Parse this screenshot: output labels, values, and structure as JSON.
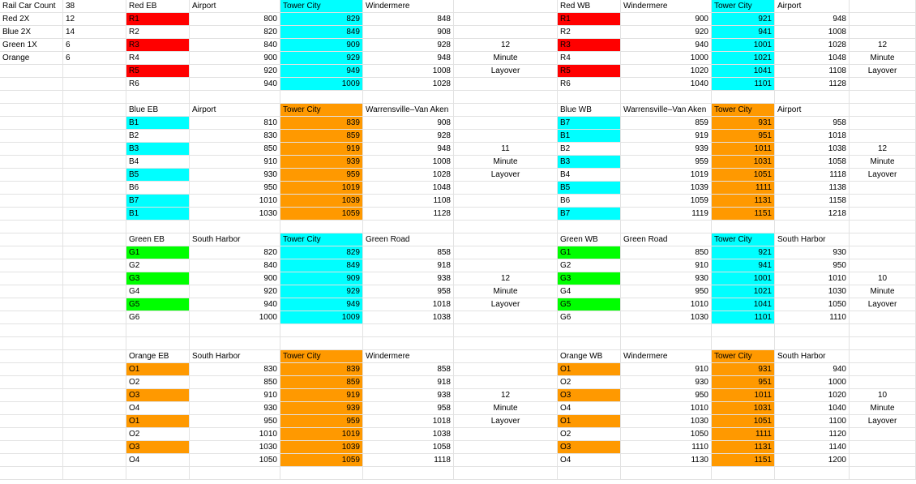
{
  "colors": {
    "red": "#ff0000",
    "cyan": "#00ffff",
    "orange": "#ff9900",
    "green": "#00ff00",
    "gridline": "#e2e2e2"
  },
  "summary": [
    [
      "Rail Car Count",
      "38"
    ],
    [
      "Red 2X",
      "12"
    ],
    [
      "Blue 2X",
      "14"
    ],
    [
      "Green 1X",
      "6"
    ],
    [
      "Orange",
      "6"
    ]
  ],
  "blocks": [
    {
      "id": "red-eb",
      "title": "Red EB",
      "side": "left",
      "row": 0,
      "hub": "cyan",
      "headers": [
        "Airport",
        "Tower City",
        "Windermere"
      ],
      "layover": [
        "12",
        "Minute",
        "Layover"
      ],
      "rows": [
        {
          "car": "R1",
          "car_color": "red",
          "a": "800",
          "b": "829",
          "c": "848"
        },
        {
          "car": "R2",
          "car_color": "",
          "a": "820",
          "b": "849",
          "c": "908"
        },
        {
          "car": "R3",
          "car_color": "red",
          "a": "840",
          "b": "909",
          "c": "928"
        },
        {
          "car": "R4",
          "car_color": "",
          "a": "900",
          "b": "929",
          "c": "948"
        },
        {
          "car": "R5",
          "car_color": "red",
          "a": "920",
          "b": "949",
          "c": "1008"
        },
        {
          "car": "R6",
          "car_color": "",
          "a": "940",
          "b": "1009",
          "c": "1028"
        }
      ]
    },
    {
      "id": "red-wb",
      "title": "Red WB",
      "side": "right",
      "row": 0,
      "hub": "cyan",
      "headers": [
        "Windermere",
        "Tower City",
        "Airport"
      ],
      "layover": [
        "12",
        "Minute",
        "Layover"
      ],
      "rows": [
        {
          "car": "R1",
          "car_color": "red",
          "a": "900",
          "b": "921",
          "c": "948"
        },
        {
          "car": "R2",
          "car_color": "",
          "a": "920",
          "b": "941",
          "c": "1008"
        },
        {
          "car": "R3",
          "car_color": "red",
          "a": "940",
          "b": "1001",
          "c": "1028"
        },
        {
          "car": "R4",
          "car_color": "",
          "a": "1000",
          "b": "1021",
          "c": "1048"
        },
        {
          "car": "R5",
          "car_color": "red",
          "a": "1020",
          "b": "1041",
          "c": "1108"
        },
        {
          "car": "R6",
          "car_color": "",
          "a": "1040",
          "b": "1101",
          "c": "1128"
        }
      ]
    },
    {
      "id": "blue-eb",
      "title": "Blue EB",
      "side": "left",
      "row": 8,
      "hub": "orange",
      "headers": [
        "Airport",
        "Tower City",
        "Warrensville–Van Aken"
      ],
      "layover": [
        "11",
        "Minute",
        "Layover"
      ],
      "rows": [
        {
          "car": "B1",
          "car_color": "cyan",
          "a": "810",
          "b": "839",
          "c": "908"
        },
        {
          "car": "B2",
          "car_color": "",
          "a": "830",
          "b": "859",
          "c": "928"
        },
        {
          "car": "B3",
          "car_color": "cyan",
          "a": "850",
          "b": "919",
          "c": "948"
        },
        {
          "car": "B4",
          "car_color": "",
          "a": "910",
          "b": "939",
          "c": "1008"
        },
        {
          "car": "B5",
          "car_color": "cyan",
          "a": "930",
          "b": "959",
          "c": "1028"
        },
        {
          "car": "B6",
          "car_color": "",
          "a": "950",
          "b": "1019",
          "c": "1048"
        },
        {
          "car": "B7",
          "car_color": "cyan",
          "a": "1010",
          "b": "1039",
          "c": "1108"
        },
        {
          "car": "B1",
          "car_color": "cyan",
          "a": "1030",
          "b": "1059",
          "c": "1128"
        }
      ]
    },
    {
      "id": "blue-wb",
      "title": "Blue WB",
      "side": "right",
      "row": 8,
      "hub": "orange",
      "headers": [
        "Warrensville–Van Aken",
        "Tower City",
        "Airport"
      ],
      "layover": [
        "12",
        "Minute",
        "Layover"
      ],
      "rows": [
        {
          "car": "B7",
          "car_color": "cyan",
          "a": "859",
          "b": "931",
          "c": "958"
        },
        {
          "car": "B1",
          "car_color": "cyan",
          "a": "919",
          "b": "951",
          "c": "1018"
        },
        {
          "car": "B2",
          "car_color": "",
          "a": "939",
          "b": "1011",
          "c": "1038"
        },
        {
          "car": "B3",
          "car_color": "cyan",
          "a": "959",
          "b": "1031",
          "c": "1058"
        },
        {
          "car": "B4",
          "car_color": "",
          "a": "1019",
          "b": "1051",
          "c": "1118"
        },
        {
          "car": "B5",
          "car_color": "cyan",
          "a": "1039",
          "b": "1111",
          "c": "1138"
        },
        {
          "car": "B6",
          "car_color": "",
          "a": "1059",
          "b": "1131",
          "c": "1158"
        },
        {
          "car": "B7",
          "car_color": "cyan",
          "a": "1119",
          "b": "1151",
          "c": "1218"
        }
      ]
    },
    {
      "id": "green-eb",
      "title": "Green EB",
      "side": "left",
      "row": 18,
      "hub": "cyan",
      "headers": [
        "South Harbor",
        "Tower City",
        "Green Road"
      ],
      "layover": [
        "12",
        "Minute",
        "Layover"
      ],
      "rows": [
        {
          "car": "G1",
          "car_color": "green",
          "a": "820",
          "b": "829",
          "c": "858"
        },
        {
          "car": "G2",
          "car_color": "",
          "a": "840",
          "b": "849",
          "c": "918"
        },
        {
          "car": "G3",
          "car_color": "green",
          "a": "900",
          "b": "909",
          "c": "938"
        },
        {
          "car": "G4",
          "car_color": "",
          "a": "920",
          "b": "929",
          "c": "958"
        },
        {
          "car": "G5",
          "car_color": "green",
          "a": "940",
          "b": "949",
          "c": "1018"
        },
        {
          "car": "G6",
          "car_color": "",
          "a": "1000",
          "b": "1009",
          "c": "1038"
        }
      ]
    },
    {
      "id": "green-wb",
      "title": "Green WB",
      "side": "right",
      "row": 18,
      "hub": "cyan",
      "headers": [
        "Green Road",
        "Tower City",
        "South Harbor"
      ],
      "layover": [
        "10",
        "Minute",
        "Layover"
      ],
      "rows": [
        {
          "car": "G1",
          "car_color": "green",
          "a": "850",
          "b": "921",
          "c": "930"
        },
        {
          "car": "G2",
          "car_color": "",
          "a": "910",
          "b": "941",
          "c": "950"
        },
        {
          "car": "G3",
          "car_color": "green",
          "a": "930",
          "b": "1001",
          "c": "1010"
        },
        {
          "car": "G4",
          "car_color": "",
          "a": "950",
          "b": "1021",
          "c": "1030"
        },
        {
          "car": "G5",
          "car_color": "green",
          "a": "1010",
          "b": "1041",
          "c": "1050"
        },
        {
          "car": "G6",
          "car_color": "",
          "a": "1030",
          "b": "1101",
          "c": "1110"
        }
      ]
    },
    {
      "id": "orange-eb",
      "title": "Orange EB",
      "side": "left",
      "row": 27,
      "hub": "orange",
      "headers": [
        "South Harbor",
        "Tower City",
        "Windermere"
      ],
      "layover": [
        "12",
        "Minute",
        "Layover"
      ],
      "rows": [
        {
          "car": "O1",
          "car_color": "orange",
          "a": "830",
          "b": "839",
          "c": "858"
        },
        {
          "car": "O2",
          "car_color": "",
          "a": "850",
          "b": "859",
          "c": "918"
        },
        {
          "car": "O3",
          "car_color": "orange",
          "a": "910",
          "b": "919",
          "c": "938"
        },
        {
          "car": "O4",
          "car_color": "",
          "a": "930",
          "b": "939",
          "c": "958"
        },
        {
          "car": "O1",
          "car_color": "orange",
          "a": "950",
          "b": "959",
          "c": "1018"
        },
        {
          "car": "O2",
          "car_color": "",
          "a": "1010",
          "b": "1019",
          "c": "1038"
        },
        {
          "car": "O3",
          "car_color": "orange",
          "a": "1030",
          "b": "1039",
          "c": "1058"
        },
        {
          "car": "O4",
          "car_color": "",
          "a": "1050",
          "b": "1059",
          "c": "1118"
        }
      ]
    },
    {
      "id": "orange-wb",
      "title": "Orange WB",
      "side": "right",
      "row": 27,
      "hub": "orange",
      "headers": [
        "Windermere",
        "Tower City",
        "South Harbor"
      ],
      "layover": [
        "10",
        "Minute",
        "Layover"
      ],
      "rows": [
        {
          "car": "O1",
          "car_color": "orange",
          "a": "910",
          "b": "931",
          "c": "940"
        },
        {
          "car": "O2",
          "car_color": "",
          "a": "930",
          "b": "951",
          "c": "1000"
        },
        {
          "car": "O3",
          "car_color": "orange",
          "a": "950",
          "b": "1011",
          "c": "1020"
        },
        {
          "car": "O4",
          "car_color": "",
          "a": "1010",
          "b": "1031",
          "c": "1040"
        },
        {
          "car": "O1",
          "car_color": "orange",
          "a": "1030",
          "b": "1051",
          "c": "1100"
        },
        {
          "car": "O2",
          "car_color": "",
          "a": "1050",
          "b": "1111",
          "c": "1120"
        },
        {
          "car": "O3",
          "car_color": "orange",
          "a": "1110",
          "b": "1131",
          "c": "1140"
        },
        {
          "car": "O4",
          "car_color": "",
          "a": "1130",
          "b": "1151",
          "c": "1200"
        }
      ]
    }
  ]
}
